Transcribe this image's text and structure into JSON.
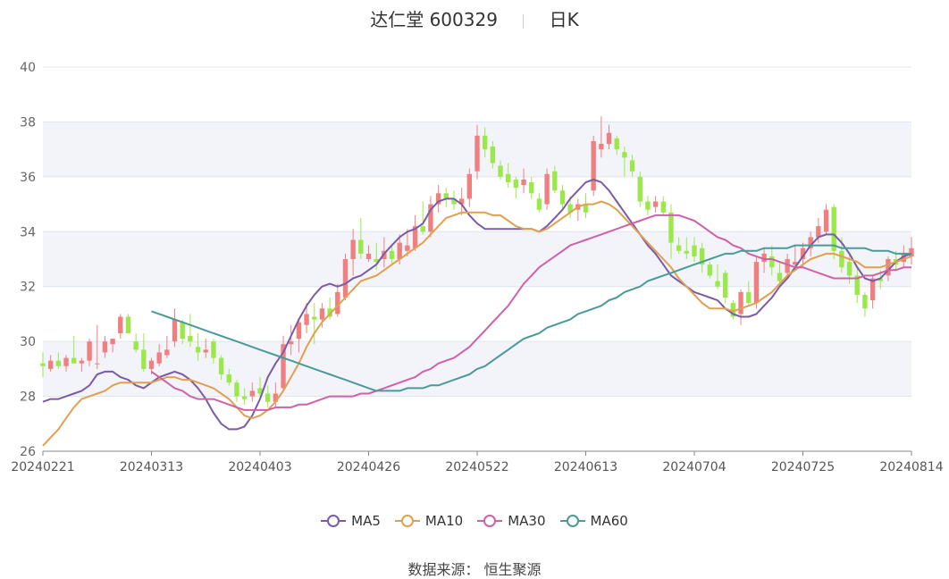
{
  "header": {
    "name": "达仁堂",
    "code": "600329",
    "period": "日K"
  },
  "footer": {
    "source_label": "数据来源：",
    "source_name": "恒生聚源"
  },
  "colors": {
    "up": "#f08080",
    "down": "#9be84a",
    "ma5": "#7b5ba8",
    "ma10": "#e0a050",
    "ma30": "#d060a8",
    "ma60": "#4a9a9a",
    "grid_band": "#f2f4fa",
    "grid_line": "#e0e4ee"
  },
  "chart_data": {
    "type": "candlestick",
    "ylim": [
      26,
      40
    ],
    "yticks": [
      26,
      28,
      30,
      32,
      34,
      36,
      38,
      40
    ],
    "x_tick_labels": [
      "20240221",
      "20240313",
      "20240403",
      "20240426",
      "20240522",
      "20240613",
      "20240704",
      "20240725",
      "20240814"
    ],
    "x_tick_indices": [
      0,
      14,
      28,
      42,
      56,
      70,
      84,
      98,
      112
    ],
    "n_sessions": 113,
    "legend": [
      "MA5",
      "MA10",
      "MA30",
      "MA60"
    ],
    "candles_ohlc": [
      [
        29.2,
        29.6,
        28.7,
        29.1
      ],
      [
        29.0,
        29.5,
        28.9,
        29.3
      ],
      [
        29.3,
        29.6,
        29.0,
        29.1
      ],
      [
        29.1,
        29.5,
        28.9,
        29.4
      ],
      [
        29.4,
        30.2,
        29.2,
        29.2
      ],
      [
        29.2,
        29.4,
        28.9,
        29.3
      ],
      [
        29.3,
        30.1,
        29.1,
        30.0
      ],
      [
        29.2,
        30.6,
        29.0,
        29.2
      ],
      [
        29.6,
        30.2,
        29.4,
        30.0
      ],
      [
        29.9,
        30.1,
        29.6,
        30.1
      ],
      [
        30.3,
        31.0,
        30.1,
        30.9
      ],
      [
        30.9,
        31.0,
        30.3,
        30.3
      ],
      [
        30.0,
        30.3,
        29.6,
        29.7
      ],
      [
        29.7,
        30.3,
        28.9,
        29.0
      ],
      [
        29.0,
        29.4,
        28.8,
        29.3
      ],
      [
        29.2,
        29.9,
        29.1,
        29.6
      ],
      [
        29.5,
        30.2,
        29.4,
        29.7
      ],
      [
        30.0,
        31.2,
        29.8,
        30.8
      ],
      [
        30.7,
        30.8,
        29.9,
        30.1
      ],
      [
        30.2,
        31.0,
        29.8,
        30.0
      ],
      [
        29.8,
        30.3,
        29.3,
        29.6
      ],
      [
        29.6,
        30.1,
        29.4,
        29.7
      ],
      [
        30.0,
        30.1,
        29.2,
        29.4
      ],
      [
        29.4,
        29.5,
        28.6,
        28.8
      ],
      [
        28.8,
        29.0,
        28.4,
        28.5
      ],
      [
        28.5,
        28.6,
        27.8,
        28.0
      ],
      [
        28.0,
        28.3,
        27.7,
        27.9
      ],
      [
        28.0,
        28.5,
        27.8,
        28.2
      ],
      [
        28.3,
        28.7,
        28.0,
        28.1
      ],
      [
        28.1,
        28.4,
        27.6,
        27.8
      ],
      [
        27.8,
        28.5,
        27.6,
        28.1
      ],
      [
        28.3,
        30.2,
        28.2,
        29.9
      ],
      [
        29.9,
        30.6,
        29.5,
        30.0
      ],
      [
        30.1,
        30.8,
        29.6,
        30.7
      ],
      [
        30.6,
        31.4,
        30.3,
        31.0
      ],
      [
        30.9,
        31.4,
        29.9,
        30.8
      ],
      [
        30.8,
        31.4,
        30.5,
        31.2
      ],
      [
        31.2,
        31.6,
        30.8,
        30.9
      ],
      [
        31.0,
        32.1,
        30.9,
        31.8
      ],
      [
        31.6,
        33.2,
        31.5,
        33.0
      ],
      [
        33.0,
        34.1,
        32.4,
        33.7
      ],
      [
        33.7,
        34.5,
        33.0,
        33.2
      ],
      [
        33.0,
        33.5,
        32.9,
        33.2
      ],
      [
        33.0,
        33.6,
        32.6,
        32.9
      ],
      [
        33.0,
        33.8,
        32.7,
        33.3
      ],
      [
        33.3,
        33.5,
        32.8,
        33.0
      ],
      [
        33.0,
        33.9,
        32.8,
        33.6
      ],
      [
        33.3,
        34.1,
        33.1,
        33.5
      ],
      [
        33.4,
        34.6,
        33.3,
        34.2
      ],
      [
        34.2,
        35.1,
        33.9,
        34.0
      ],
      [
        34.0,
        35.3,
        33.8,
        35.0
      ],
      [
        35.0,
        35.7,
        34.7,
        35.4
      ],
      [
        35.4,
        35.6,
        34.9,
        35.2
      ],
      [
        35.2,
        35.5,
        34.8,
        35.0
      ],
      [
        35.0,
        35.6,
        34.6,
        35.2
      ],
      [
        35.2,
        36.3,
        34.9,
        36.1
      ],
      [
        36.2,
        37.9,
        35.9,
        37.5
      ],
      [
        37.5,
        37.8,
        36.7,
        37.0
      ],
      [
        37.1,
        37.3,
        36.3,
        36.5
      ],
      [
        36.4,
        36.6,
        35.9,
        36.0
      ],
      [
        36.1,
        36.5,
        35.6,
        35.8
      ],
      [
        35.9,
        36.0,
        35.2,
        35.6
      ],
      [
        35.7,
        36.3,
        35.4,
        35.9
      ],
      [
        35.8,
        36.0,
        35.2,
        35.4
      ],
      [
        35.2,
        35.4,
        34.7,
        34.8
      ],
      [
        35.0,
        36.3,
        34.8,
        36.1
      ],
      [
        36.2,
        36.4,
        35.4,
        35.5
      ],
      [
        35.5,
        35.7,
        34.8,
        35.0
      ],
      [
        35.0,
        35.3,
        34.5,
        34.7
      ],
      [
        34.8,
        35.2,
        34.4,
        35.0
      ],
      [
        35.0,
        35.4,
        34.5,
        34.7
      ],
      [
        35.5,
        37.5,
        35.3,
        37.3
      ],
      [
        37.0,
        38.2,
        36.7,
        37.2
      ],
      [
        37.2,
        37.9,
        37.0,
        37.6
      ],
      [
        37.4,
        37.5,
        36.8,
        37.0
      ],
      [
        36.9,
        37.1,
        36.0,
        36.7
      ],
      [
        36.6,
        36.8,
        36.0,
        36.2
      ],
      [
        36.0,
        36.2,
        34.9,
        35.1
      ],
      [
        35.1,
        35.3,
        34.6,
        34.8
      ],
      [
        34.9,
        35.3,
        34.7,
        35.1
      ],
      [
        35.1,
        35.3,
        34.6,
        34.7
      ],
      [
        34.7,
        35.0,
        33.0,
        33.6
      ],
      [
        33.5,
        33.8,
        33.2,
        33.3
      ],
      [
        33.3,
        33.8,
        33.0,
        33.2
      ],
      [
        33.5,
        33.8,
        32.9,
        33.1
      ],
      [
        33.4,
        33.6,
        32.5,
        32.8
      ],
      [
        32.8,
        32.9,
        32.3,
        32.4
      ],
      [
        32.2,
        32.8,
        31.9,
        32.0
      ],
      [
        32.5,
        32.6,
        31.4,
        31.6
      ],
      [
        31.4,
        31.5,
        30.8,
        30.9
      ],
      [
        31.0,
        31.9,
        30.6,
        31.8
      ],
      [
        31.8,
        32.2,
        31.3,
        31.4
      ],
      [
        31.4,
        33.1,
        31.2,
        32.9
      ],
      [
        32.9,
        33.4,
        32.5,
        33.2
      ],
      [
        33.1,
        33.5,
        32.4,
        32.7
      ],
      [
        32.5,
        32.9,
        32.0,
        32.2
      ],
      [
        32.5,
        33.2,
        32.3,
        33.0
      ],
      [
        32.8,
        33.5,
        32.6,
        32.9
      ],
      [
        33.0,
        33.6,
        32.7,
        33.4
      ],
      [
        33.4,
        34.0,
        33.1,
        33.8
      ],
      [
        33.8,
        34.5,
        33.6,
        34.2
      ],
      [
        34.0,
        35.0,
        33.9,
        34.8
      ],
      [
        34.9,
        35.0,
        33.0,
        33.3
      ],
      [
        33.3,
        33.8,
        32.5,
        32.7
      ],
      [
        32.9,
        33.2,
        32.1,
        32.4
      ],
      [
        32.4,
        32.7,
        31.4,
        31.7
      ],
      [
        31.7,
        31.8,
        30.9,
        31.2
      ],
      [
        31.5,
        32.4,
        31.2,
        32.3
      ],
      [
        32.3,
        32.6,
        31.9,
        32.2
      ],
      [
        32.4,
        33.1,
        32.2,
        33.0
      ],
      [
        33.0,
        33.3,
        32.6,
        32.8
      ],
      [
        32.9,
        33.5,
        32.7,
        33.2
      ],
      [
        33.1,
        33.8,
        32.8,
        33.4
      ]
    ],
    "series": [
      {
        "name": "MA5",
        "values": [
          27.8,
          27.9,
          27.9,
          28.0,
          28.1,
          28.2,
          28.4,
          28.8,
          28.9,
          28.9,
          28.7,
          28.6,
          28.4,
          28.3,
          28.5,
          28.7,
          28.8,
          28.9,
          28.8,
          28.6,
          28.3,
          27.9,
          27.4,
          27.0,
          26.8,
          26.8,
          26.9,
          27.3,
          27.9,
          28.7,
          29.2,
          29.6,
          30.2,
          30.8,
          31.3,
          31.7,
          32.0,
          32.1,
          32.0,
          32.1,
          32.3,
          32.4,
          32.6,
          32.8,
          33.2,
          33.5,
          33.8,
          34.0,
          34.1,
          34.3,
          34.8,
          35.1,
          35.2,
          35.2,
          35.0,
          34.6,
          34.3,
          34.1,
          34.1,
          34.1,
          34.1,
          34.1,
          34.1,
          34.1,
          34.0,
          34.2,
          34.5,
          34.8,
          35.2,
          35.5,
          35.8,
          35.9,
          35.8,
          35.5,
          35.1,
          34.7,
          34.3,
          33.9,
          33.5,
          33.2,
          32.8,
          32.4,
          32.2,
          32.0,
          31.8,
          31.7,
          31.6,
          31.5,
          31.2,
          31.0,
          30.9,
          30.9,
          31.0,
          31.3,
          31.6,
          32.0,
          32.3,
          32.7,
          33.1,
          33.5,
          33.8,
          33.9,
          33.9,
          33.6,
          33.2,
          32.7,
          32.3,
          32.2,
          32.3,
          32.6,
          32.9,
          33.1,
          33.2
        ]
      },
      {
        "name": "MA10",
        "values": [
          26.2,
          26.5,
          26.8,
          27.2,
          27.6,
          27.9,
          28.0,
          28.1,
          28.2,
          28.4,
          28.5,
          28.5,
          28.5,
          28.5,
          28.5,
          28.6,
          28.7,
          28.7,
          28.6,
          28.6,
          28.5,
          28.4,
          28.3,
          28.1,
          27.9,
          27.6,
          27.3,
          27.2,
          27.3,
          27.5,
          27.8,
          28.2,
          28.7,
          29.2,
          29.8,
          30.3,
          30.7,
          31.0,
          31.3,
          31.6,
          31.9,
          32.2,
          32.3,
          32.4,
          32.6,
          32.8,
          33.0,
          33.2,
          33.4,
          33.6,
          33.9,
          34.2,
          34.5,
          34.6,
          34.7,
          34.7,
          34.7,
          34.7,
          34.6,
          34.6,
          34.4,
          34.2,
          34.1,
          34.1,
          34.0,
          34.1,
          34.3,
          34.5,
          34.7,
          34.9,
          35.0,
          35.0,
          35.1,
          35.0,
          34.8,
          34.5,
          34.2,
          33.9,
          33.6,
          33.3,
          33.0,
          32.7,
          32.3,
          32.0,
          31.7,
          31.4,
          31.2,
          31.2,
          31.2,
          31.1,
          31.2,
          31.3,
          31.4,
          31.6,
          31.8,
          32.1,
          32.4,
          32.6,
          32.8,
          33.0,
          33.1,
          33.2,
          33.2,
          33.1,
          33.0,
          32.9,
          32.7,
          32.7,
          32.7,
          32.8,
          32.9,
          33.0,
          33.1
        ]
      },
      {
        "name": "MA30",
        "values": [
          28.9,
          28.7,
          28.5,
          28.3,
          28.2,
          28.0,
          27.9,
          27.9,
          27.9,
          27.8,
          27.7,
          27.6,
          27.5,
          27.5,
          27.5,
          27.5,
          27.6,
          27.6,
          27.6,
          27.7,
          27.7,
          27.8,
          27.9,
          28.0,
          28.0,
          28.0,
          28.0,
          28.1,
          28.1,
          28.2,
          28.3,
          28.4,
          28.5,
          28.6,
          28.7,
          28.9,
          29.0,
          29.2,
          29.3,
          29.4,
          29.6,
          29.8,
          30.1,
          30.4,
          30.7,
          31.0,
          31.3,
          31.7,
          32.1,
          32.4,
          32.7,
          32.9,
          33.1,
          33.3,
          33.5,
          33.6,
          33.7,
          33.8,
          33.9,
          34.0,
          34.1,
          34.2,
          34.3,
          34.4,
          34.5,
          34.6,
          34.6,
          34.6,
          34.6,
          34.5,
          34.4,
          34.2,
          34.0,
          33.8,
          33.7,
          33.5,
          33.4,
          33.2,
          33.1,
          33.0,
          33.0,
          32.9,
          32.8,
          32.7,
          32.7,
          32.6,
          32.5,
          32.4,
          32.3,
          32.3,
          32.3,
          32.3,
          32.4,
          32.4,
          32.5,
          32.6,
          32.6,
          32.7,
          32.7
        ]
      },
      {
        "name": "MA60",
        "values": [
          31.1,
          31.0,
          30.9,
          30.8,
          30.7,
          30.6,
          30.5,
          30.4,
          30.3,
          30.2,
          30.1,
          30.0,
          29.9,
          29.8,
          29.7,
          29.6,
          29.5,
          29.4,
          29.3,
          29.2,
          29.1,
          29.0,
          28.9,
          28.8,
          28.7,
          28.6,
          28.5,
          28.4,
          28.3,
          28.2,
          28.2,
          28.2,
          28.2,
          28.3,
          28.3,
          28.3,
          28.4,
          28.4,
          28.5,
          28.6,
          28.7,
          28.8,
          29.0,
          29.1,
          29.3,
          29.5,
          29.7,
          29.9,
          30.1,
          30.2,
          30.3,
          30.5,
          30.6,
          30.7,
          30.8,
          31.0,
          31.1,
          31.2,
          31.3,
          31.5,
          31.6,
          31.8,
          31.9,
          32.0,
          32.2,
          32.3,
          32.4,
          32.5,
          32.6,
          32.7,
          32.8,
          32.9,
          33.0,
          33.1,
          33.2,
          33.2,
          33.3,
          33.3,
          33.3,
          33.4,
          33.4,
          33.4,
          33.4,
          33.5,
          33.5,
          33.5,
          33.5,
          33.5,
          33.5,
          33.4,
          33.4,
          33.4,
          33.4,
          33.3,
          33.3,
          33.3,
          33.2,
          33.2,
          33.2
        ]
      }
    ]
  }
}
